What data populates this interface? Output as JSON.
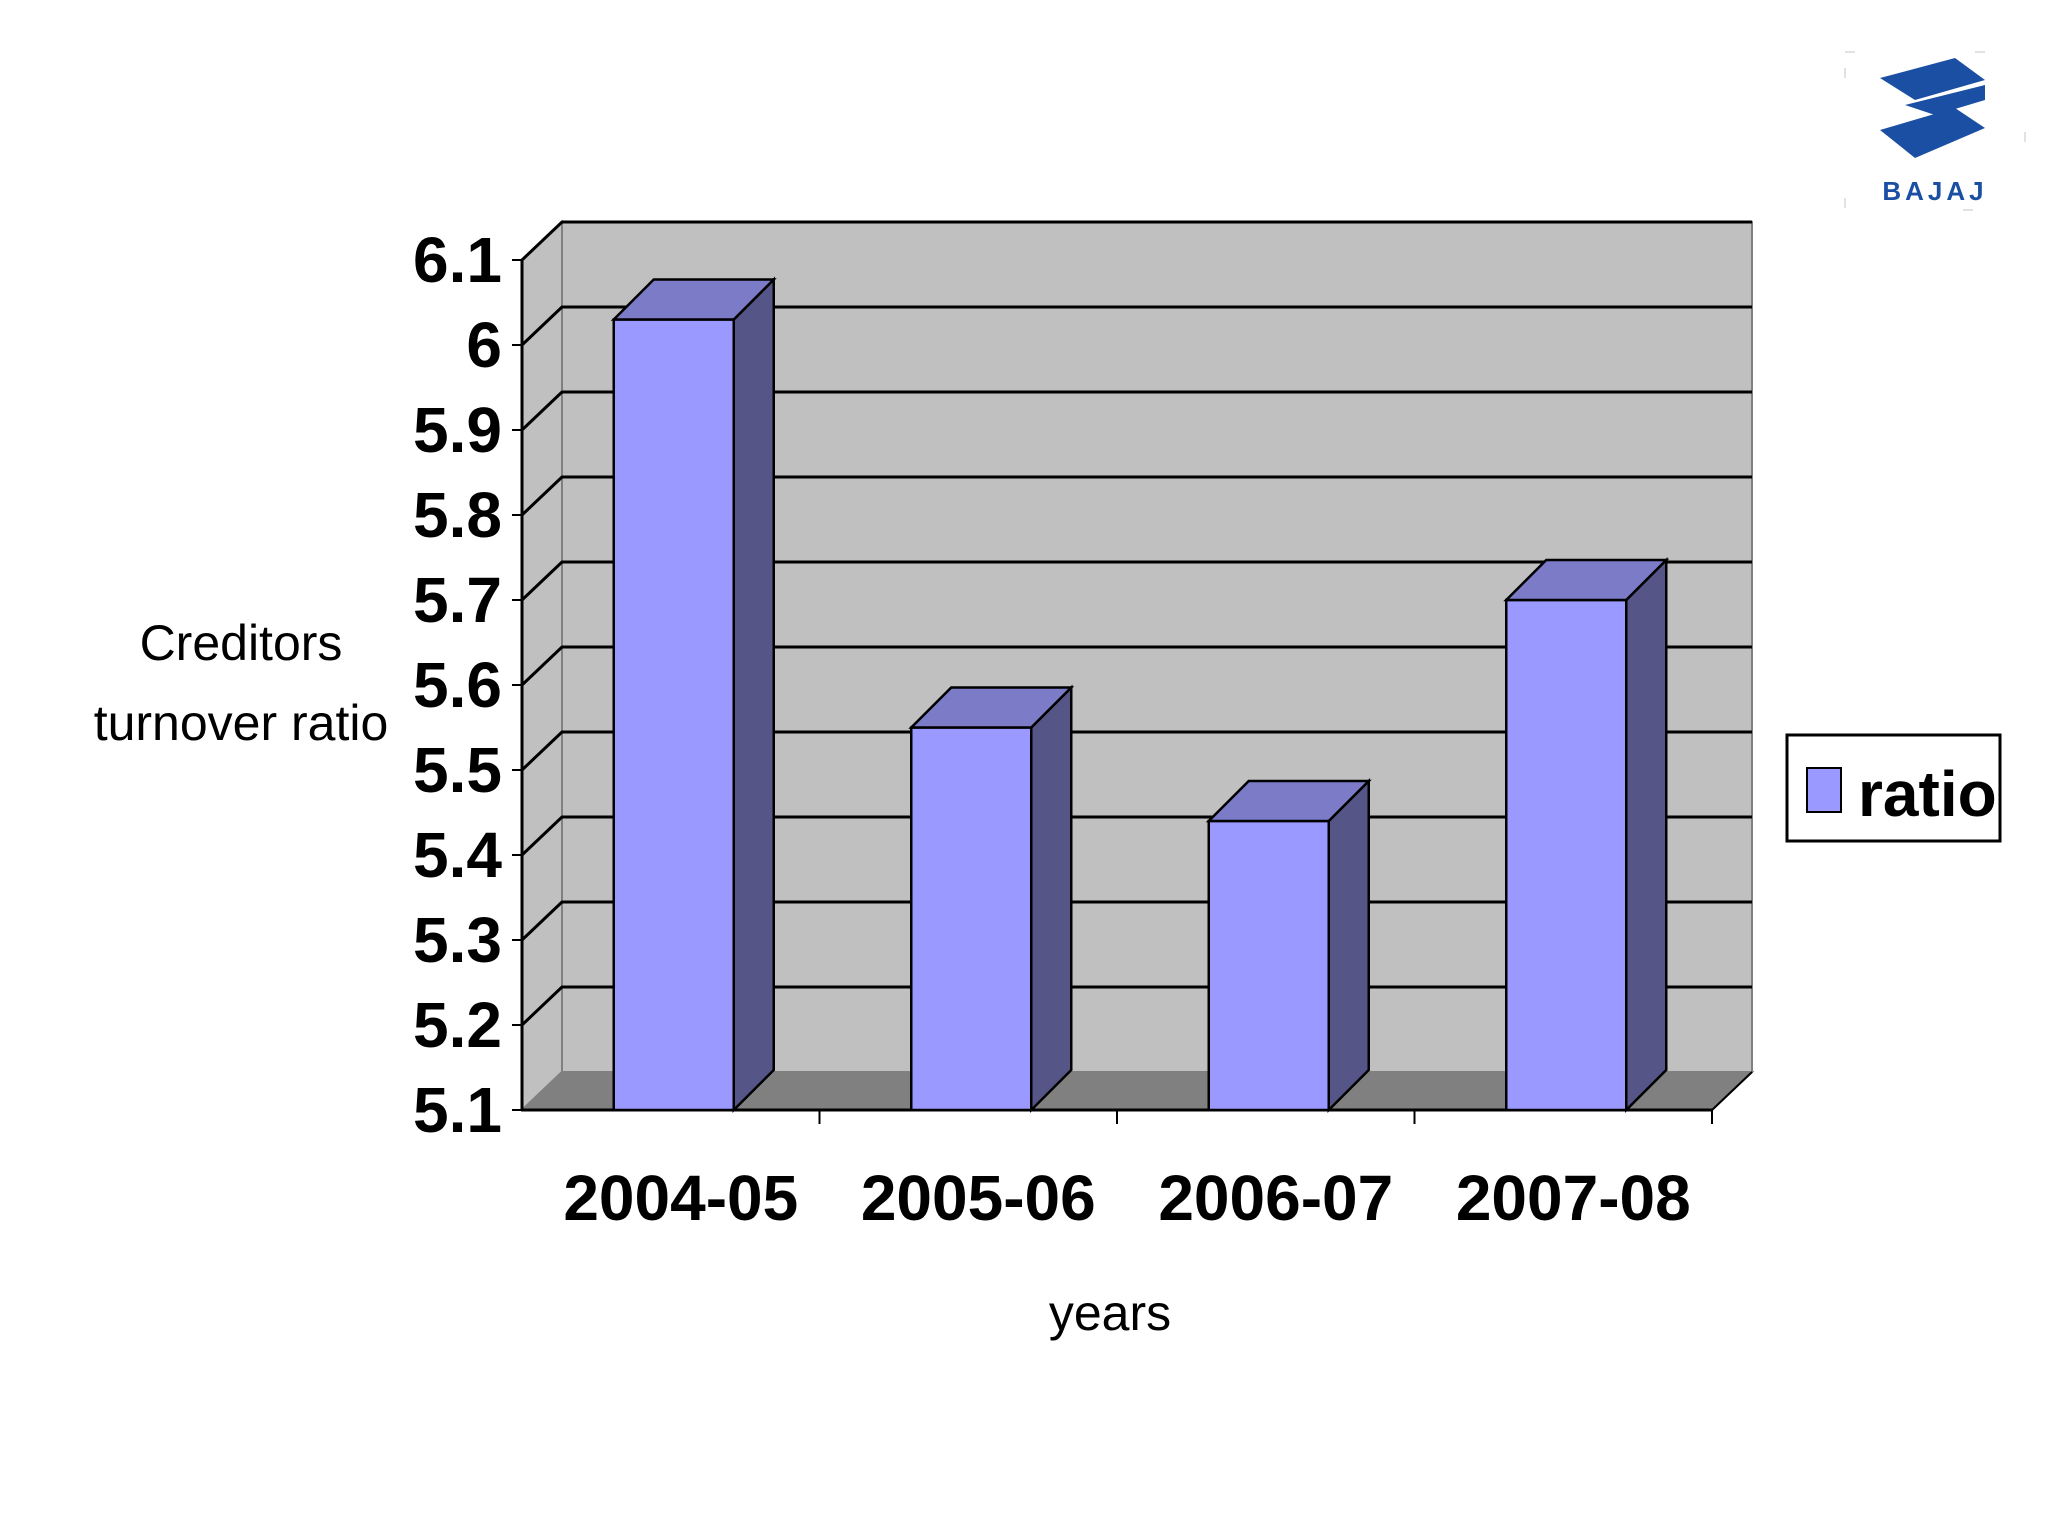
{
  "logo": {
    "text": "BAJAJ",
    "color": "#1a4fa3"
  },
  "chart_data": {
    "type": "bar",
    "style": "3d-column",
    "categories": [
      "2004-05",
      "2005-06",
      "2006-07",
      "2007-08"
    ],
    "series": [
      {
        "name": "ratio",
        "values": [
          6.03,
          5.55,
          5.44,
          5.7
        ]
      }
    ],
    "ylabel": [
      "Creditors",
      "turnover ratio"
    ],
    "xlabel": "years",
    "ylim": [
      5.1,
      6.1
    ],
    "yticks": [
      "5.1",
      "5.2",
      "5.3",
      "5.4",
      "5.5",
      "5.6",
      "5.7",
      "5.8",
      "5.9",
      "6",
      "6.1"
    ],
    "grid": true,
    "legend": "right",
    "colors": {
      "bar_front": "#9999ff",
      "bar_top": "#7b7bc8",
      "bar_side": "#555588",
      "wall": "#c0c0c0",
      "floor": "#808080"
    }
  }
}
